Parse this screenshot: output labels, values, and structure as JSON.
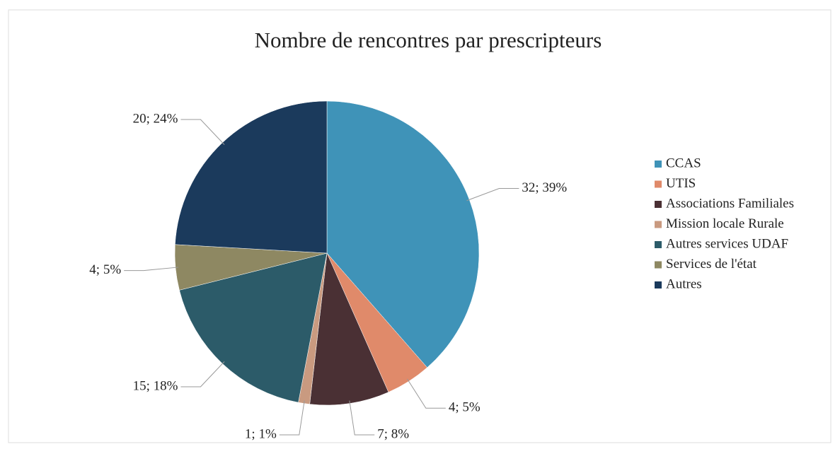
{
  "chart_data": {
    "type": "pie",
    "title": "Nombre de rencontres par prescripteurs",
    "categories": [
      "CCAS",
      "UTIS",
      "Associations Familiales",
      "Mission locale Rurale",
      "Autres services UDAF",
      "Services de l'état",
      "Autres"
    ],
    "values": [
      32,
      4,
      7,
      1,
      15,
      4,
      20
    ],
    "value_labels": [
      "32; 39%",
      "4; 5%",
      "7; 8%",
      "1; 1%",
      "15; 18%",
      "4; 5%",
      "20; 24%"
    ],
    "colors": [
      "#3f93b8",
      "#e08a6a",
      "#4a3034",
      "#c99a80",
      "#2c5b69",
      "#8e8862",
      "#1b3a5c"
    ],
    "legend": "right"
  }
}
